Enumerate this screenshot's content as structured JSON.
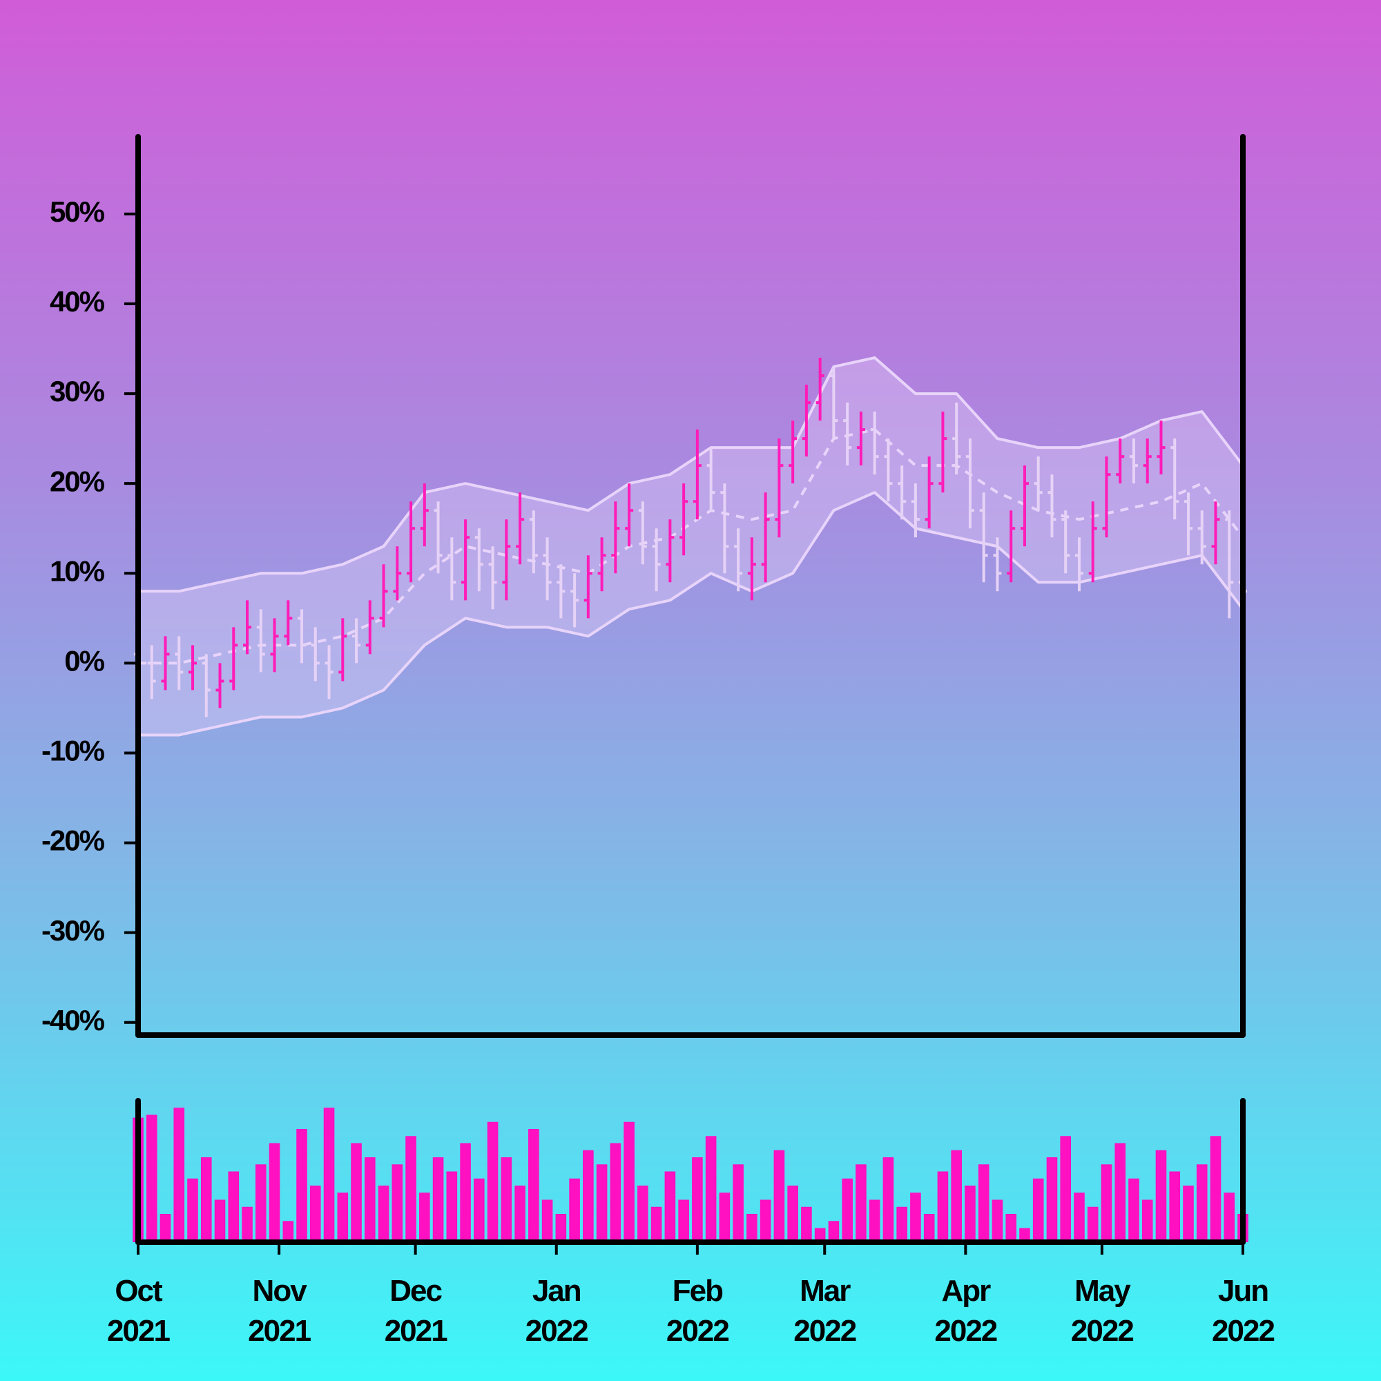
{
  "chart_data": [
    {
      "type": "ohlc",
      "x": [
        0,
        3,
        6,
        9,
        12,
        15,
        18,
        21,
        24,
        27,
        30,
        33,
        36,
        39,
        42,
        45,
        48,
        51,
        54,
        57,
        60,
        63,
        66,
        69,
        72,
        75,
        78,
        81,
        84,
        87,
        90,
        93,
        96,
        99,
        102,
        105,
        108,
        111,
        114,
        117,
        120,
        123,
        126,
        129,
        132,
        135,
        138,
        141,
        144,
        147,
        150,
        153,
        156,
        159,
        162,
        165,
        168,
        171,
        174,
        177,
        180,
        183,
        186,
        189,
        192,
        195,
        198,
        201,
        204,
        207,
        210,
        213,
        216,
        219,
        222,
        225,
        228,
        231,
        234,
        237,
        240,
        243
      ],
      "open": [
        1,
        0,
        -2,
        1,
        -1,
        0,
        -3,
        -2,
        2,
        4,
        1,
        3,
        5,
        2,
        0,
        -1,
        3,
        2,
        5,
        8,
        10,
        15,
        17,
        12,
        9,
        14,
        11,
        9,
        13,
        16,
        12,
        9,
        8,
        7,
        10,
        12,
        15,
        17,
        13,
        11,
        14,
        18,
        22,
        19,
        13,
        10,
        11,
        16,
        22,
        25,
        29,
        32,
        27,
        24,
        26,
        23,
        20,
        18,
        16,
        20,
        25,
        23,
        17,
        12,
        10,
        15,
        20,
        19,
        16,
        12,
        10,
        15,
        21,
        23,
        22,
        23,
        24,
        18,
        15,
        13,
        16,
        9
      ],
      "high": [
        3,
        2,
        3,
        3,
        2,
        1,
        0,
        4,
        7,
        6,
        5,
        7,
        6,
        4,
        2,
        5,
        5,
        7,
        11,
        13,
        18,
        20,
        18,
        14,
        16,
        15,
        13,
        16,
        19,
        17,
        14,
        11,
        10,
        12,
        14,
        18,
        20,
        18,
        15,
        16,
        20,
        26,
        24,
        20,
        15,
        14,
        19,
        25,
        27,
        31,
        34,
        33,
        29,
        28,
        28,
        25,
        22,
        20,
        23,
        28,
        29,
        25,
        19,
        14,
        17,
        22,
        23,
        21,
        17,
        14,
        18,
        23,
        25,
        25,
        25,
        27,
        25,
        19,
        17,
        18,
        17,
        11
      ],
      "low": [
        -3,
        -4,
        -3,
        -3,
        -3,
        -6,
        -5,
        -3,
        1,
        -1,
        -1,
        2,
        0,
        -2,
        -4,
        -2,
        0,
        1,
        4,
        7,
        9,
        13,
        10,
        7,
        7,
        8,
        6,
        7,
        11,
        10,
        7,
        5,
        4,
        5,
        8,
        10,
        13,
        11,
        8,
        9,
        12,
        16,
        17,
        10,
        8,
        7,
        9,
        14,
        20,
        23,
        27,
        25,
        22,
        22,
        21,
        18,
        16,
        14,
        15,
        19,
        21,
        15,
        9,
        8,
        9,
        13,
        17,
        14,
        10,
        8,
        9,
        14,
        20,
        20,
        20,
        21,
        16,
        12,
        11,
        11,
        5,
        5
      ],
      "close": [
        0,
        -2,
        1,
        -1,
        0,
        -3,
        -2,
        2,
        4,
        1,
        3,
        5,
        2,
        0,
        -1,
        3,
        2,
        5,
        8,
        10,
        15,
        17,
        12,
        9,
        14,
        11,
        9,
        13,
        16,
        12,
        9,
        8,
        7,
        10,
        12,
        15,
        17,
        13,
        11,
        14,
        18,
        22,
        19,
        13,
        10,
        11,
        16,
        22,
        25,
        29,
        32,
        27,
        24,
        26,
        23,
        20,
        18,
        16,
        20,
        25,
        23,
        17,
        12,
        10,
        15,
        20,
        19,
        16,
        12,
        10,
        15,
        21,
        23,
        22,
        23,
        24,
        18,
        15,
        13,
        16,
        9,
        8
      ],
      "up_color": "#ff1cb8",
      "down_color": "#e6d2f6",
      "band": {
        "x": [
          0,
          9,
          18,
          27,
          36,
          45,
          54,
          63,
          72,
          81,
          90,
          99,
          108,
          117,
          126,
          135,
          144,
          153,
          162,
          171,
          180,
          189,
          198,
          207,
          216,
          225,
          234,
          243
        ],
        "upper": [
          8,
          8,
          9,
          10,
          10,
          11,
          13,
          19,
          20,
          19,
          18,
          17,
          20,
          21,
          24,
          24,
          24,
          33,
          34,
          30,
          30,
          25,
          24,
          24,
          25,
          27,
          28,
          22
        ],
        "middle": [
          0,
          0,
          1,
          2,
          2,
          3,
          5,
          10,
          13,
          12,
          11,
          10,
          13,
          14,
          17,
          16,
          17,
          25,
          26,
          22,
          22,
          19,
          17,
          16,
          17,
          18,
          20,
          14
        ],
        "lower": [
          -8,
          -8,
          -7,
          -6,
          -6,
          -5,
          -3,
          2,
          5,
          4,
          4,
          3,
          6,
          7,
          10,
          8,
          10,
          17,
          19,
          15,
          14,
          13,
          9,
          9,
          10,
          11,
          12,
          6
        ],
        "color": "#e8d4fa"
      },
      "xlim": [
        0,
        243
      ],
      "ylim": [
        -41.4,
        58.6
      ],
      "yticks": [
        {
          "value": -40,
          "label": "-40%"
        },
        {
          "value": -30,
          "label": "-30%"
        },
        {
          "value": -20,
          "label": "-20%"
        },
        {
          "value": -10,
          "label": "-10%"
        },
        {
          "value": 0,
          "label": "0%"
        },
        {
          "value": 10,
          "label": "10%"
        },
        {
          "value": 20,
          "label": "20%"
        },
        {
          "value": 30,
          "label": "30%"
        },
        {
          "value": 40,
          "label": "40%"
        },
        {
          "value": 50,
          "label": "50%"
        }
      ]
    },
    {
      "type": "bar",
      "x": [
        0,
        3,
        6,
        9,
        12,
        15,
        18,
        21,
        24,
        27,
        30,
        33,
        36,
        39,
        42,
        45,
        48,
        51,
        54,
        57,
        60,
        63,
        66,
        69,
        72,
        75,
        78,
        81,
        84,
        87,
        90,
        93,
        96,
        99,
        102,
        105,
        108,
        111,
        114,
        117,
        120,
        123,
        126,
        129,
        132,
        135,
        138,
        141,
        144,
        147,
        150,
        153,
        156,
        159,
        162,
        165,
        168,
        171,
        174,
        177,
        180,
        183,
        186,
        189,
        192,
        195,
        198,
        201,
        204,
        207,
        210,
        213,
        216,
        219,
        222,
        225,
        228,
        231,
        234,
        237,
        240,
        243
      ],
      "values": [
        88,
        90,
        20,
        95,
        45,
        60,
        30,
        50,
        25,
        55,
        70,
        15,
        80,
        40,
        95,
        35,
        70,
        60,
        40,
        55,
        75,
        35,
        60,
        50,
        70,
        45,
        85,
        60,
        40,
        80,
        30,
        20,
        45,
        65,
        55,
        70,
        85,
        40,
        25,
        50,
        30,
        60,
        75,
        35,
        55,
        20,
        30,
        65,
        40,
        25,
        10,
        15,
        45,
        55,
        30,
        60,
        25,
        35,
        20,
        50,
        65,
        40,
        55,
        30,
        20,
        10,
        45,
        60,
        75,
        35,
        25,
        55,
        70,
        45,
        30,
        65,
        50,
        40,
        55,
        75,
        35,
        20
      ],
      "color": "#ff10c0",
      "xlim": [
        0,
        243
      ],
      "ylim": [
        0,
        100
      ],
      "xticks": [
        {
          "value": 0,
          "label": "Oct 2021"
        },
        {
          "value": 31,
          "label": "Nov 2021"
        },
        {
          "value": 61,
          "label": "Dec 2021"
        },
        {
          "value": 92,
          "label": "Jan 2022"
        },
        {
          "value": 123,
          "label": "Feb 2022"
        },
        {
          "value": 151,
          "label": "Mar 2022"
        },
        {
          "value": 182,
          "label": "Apr 2022"
        },
        {
          "value": 212,
          "label": "May 2022"
        },
        {
          "value": 243,
          "label": "Jun 2022"
        }
      ]
    }
  ]
}
